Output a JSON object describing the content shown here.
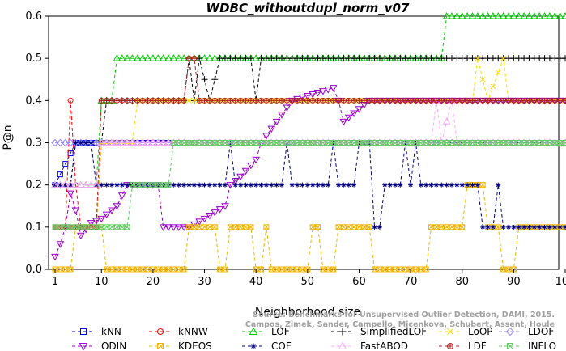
{
  "chart_data": {
    "type": "line",
    "title": "WDBC_withoutdupl_norm_v07",
    "xlabel": "Neighborhood size",
    "ylabel": "P@n",
    "xlim": [
      1,
      100
    ],
    "ylim": [
      0,
      0.6
    ],
    "xticks": [
      1,
      10,
      20,
      30,
      40,
      50,
      60,
      70,
      80,
      90,
      100
    ],
    "yticks": [
      0.0,
      0.1,
      0.2,
      0.3,
      0.4,
      0.5,
      0.6
    ],
    "grid": false,
    "legend_position": "bottom",
    "watermark": [
      "Source: Benchmarks for Unsupervised Outlier Detection, DAMI, 2015.",
      "Campos, Zimek, Sander, Campello, Micenkova, Schubert, Assent, Houle"
    ],
    "series": [
      {
        "name": "kNN",
        "color": "#0000ff",
        "marker": "square",
        "segments": [
          [
            1,
            0.2
          ],
          [
            5,
            0.3
          ],
          [
            100,
            0.3
          ]
        ]
      },
      {
        "name": "kNNW",
        "color": "#ff0000",
        "marker": "circle",
        "segments": [
          [
            1,
            0.1
          ],
          [
            3,
            0.1
          ],
          [
            4,
            0.4
          ],
          [
            5,
            0.2
          ],
          [
            6,
            0.1
          ],
          [
            9,
            0.1
          ],
          [
            10,
            0.3
          ],
          [
            100,
            0.3
          ]
        ]
      },
      {
        "name": "LOF",
        "color": "#00cc00",
        "marker": "triangle-up",
        "segments": [
          [
            1,
            0.2
          ],
          [
            9,
            0.2
          ],
          [
            10,
            0.4
          ],
          [
            12,
            0.4
          ],
          [
            13,
            0.5
          ],
          [
            76,
            0.5
          ],
          [
            77,
            0.6
          ],
          [
            100,
            0.6
          ]
        ]
      },
      {
        "name": "SimplifiedLOF",
        "color": "#000000",
        "marker": "plus",
        "segments": [
          [
            1,
            0.2
          ],
          [
            4,
            0.2
          ],
          [
            5,
            0.3
          ],
          [
            10,
            0.3
          ],
          [
            11,
            0.4
          ],
          [
            26,
            0.4
          ],
          [
            27,
            0.5
          ],
          [
            28,
            0.4
          ],
          [
            29,
            0.5
          ],
          [
            31,
            0.4
          ],
          [
            33,
            0.5
          ],
          [
            39,
            0.5
          ],
          [
            40,
            0.4
          ],
          [
            41,
            0.5
          ],
          [
            100,
            0.5
          ]
        ]
      },
      {
        "name": "LoOP",
        "color": "#ffdd00",
        "marker": "x",
        "segments": [
          [
            1,
            0.1
          ],
          [
            9,
            0.1
          ],
          [
            10,
            0.3
          ],
          [
            16,
            0.3
          ],
          [
            17,
            0.4
          ],
          [
            82,
            0.4
          ],
          [
            83,
            0.5
          ],
          [
            85,
            0.4
          ],
          [
            88,
            0.5
          ],
          [
            89,
            0.4
          ],
          [
            100,
            0.4
          ]
        ]
      },
      {
        "name": "LDOF",
        "color": "#9988ff",
        "marker": "diamond",
        "segments": [
          [
            1,
            0.3
          ],
          [
            100,
            0.3
          ]
        ]
      },
      {
        "name": "ODIN",
        "color": "#9900cc",
        "marker": "triangle-down",
        "segments": [
          [
            1,
            0.03
          ],
          [
            2,
            0.06
          ],
          [
            3,
            0.1
          ],
          [
            4,
            0.18
          ],
          [
            5,
            0.14
          ],
          [
            6,
            0.08
          ],
          [
            8,
            0.11
          ],
          [
            10,
            0.12
          ],
          [
            13,
            0.15
          ],
          [
            15,
            0.2
          ],
          [
            21,
            0.2
          ],
          [
            22,
            0.1
          ],
          [
            27,
            0.1
          ],
          [
            30,
            0.12
          ],
          [
            34,
            0.15
          ],
          [
            35,
            0.2
          ],
          [
            37,
            0.22
          ],
          [
            40,
            0.26
          ],
          [
            41,
            0.3
          ],
          [
            47,
            0.4
          ],
          [
            55,
            0.43
          ],
          [
            56,
            0.4
          ],
          [
            57,
            0.35
          ],
          [
            58,
            0.36
          ],
          [
            62,
            0.4
          ],
          [
            100,
            0.4
          ]
        ]
      },
      {
        "name": "KDEOS",
        "color": "#f0b400",
        "marker": "square-x",
        "segments": [
          [
            1,
            0.0
          ],
          [
            4,
            0.0
          ],
          [
            5,
            0.1
          ],
          [
            10,
            0.1
          ],
          [
            11,
            0.0
          ],
          [
            26,
            0.0
          ],
          [
            27,
            0.1
          ],
          [
            32,
            0.1
          ],
          [
            33,
            0.0
          ],
          [
            34,
            0.0
          ],
          [
            35,
            0.1
          ],
          [
            39,
            0.1
          ],
          [
            40,
            0.0
          ],
          [
            41,
            0.0
          ],
          [
            42,
            0.1
          ],
          [
            43,
            0.0
          ],
          [
            50,
            0.0
          ],
          [
            51,
            0.1
          ],
          [
            52,
            0.1
          ],
          [
            53,
            0.0
          ],
          [
            55,
            0.0
          ],
          [
            56,
            0.1
          ],
          [
            62,
            0.1
          ],
          [
            63,
            0.0
          ],
          [
            73,
            0.0
          ],
          [
            74,
            0.1
          ],
          [
            80,
            0.1
          ],
          [
            81,
            0.2
          ],
          [
            84,
            0.2
          ],
          [
            85,
            0.1
          ],
          [
            87,
            0.1
          ],
          [
            88,
            0.0
          ],
          [
            90,
            0.0
          ],
          [
            91,
            0.1
          ],
          [
            100,
            0.1
          ]
        ]
      },
      {
        "name": "COF",
        "color": "#000080",
        "marker": "asterisk",
        "segments": [
          [
            1,
            0.2
          ],
          [
            4,
            0.2
          ],
          [
            5,
            0.3
          ],
          [
            8,
            0.3
          ],
          [
            9,
            0.2
          ],
          [
            34,
            0.2
          ],
          [
            35,
            0.3
          ],
          [
            36,
            0.2
          ],
          [
            45,
            0.2
          ],
          [
            46,
            0.3
          ],
          [
            47,
            0.2
          ],
          [
            54,
            0.2
          ],
          [
            55,
            0.3
          ],
          [
            56,
            0.2
          ],
          [
            59,
            0.2
          ],
          [
            60,
            0.3
          ],
          [
            62,
            0.3
          ],
          [
            63,
            0.1
          ],
          [
            64,
            0.1
          ],
          [
            65,
            0.2
          ],
          [
            68,
            0.2
          ],
          [
            69,
            0.3
          ],
          [
            70,
            0.2
          ],
          [
            71,
            0.3
          ],
          [
            72,
            0.2
          ],
          [
            83,
            0.2
          ],
          [
            84,
            0.1
          ],
          [
            86,
            0.1
          ],
          [
            87,
            0.2
          ],
          [
            88,
            0.1
          ],
          [
            100,
            0.1
          ]
        ]
      },
      {
        "name": "FastABOD",
        "color": "#ffaaff",
        "marker": "triangle-up",
        "segments": [
          [
            1,
            0.2
          ],
          [
            9,
            0.2
          ],
          [
            10,
            0.3
          ],
          [
            74,
            0.3
          ],
          [
            75,
            0.4
          ],
          [
            76,
            0.3
          ],
          [
            78,
            0.4
          ],
          [
            79,
            0.3
          ],
          [
            100,
            0.3
          ]
        ]
      },
      {
        "name": "LDF",
        "color": "#b02020",
        "marker": "circle-plus",
        "segments": [
          [
            1,
            0.1
          ],
          [
            9,
            0.1
          ],
          [
            10,
            0.4
          ],
          [
            26,
            0.4
          ],
          [
            27,
            0.5
          ],
          [
            28,
            0.5
          ],
          [
            29,
            0.4
          ],
          [
            100,
            0.4
          ]
        ]
      },
      {
        "name": "INFLO",
        "color": "#66cc66",
        "marker": "square-x",
        "segments": [
          [
            1,
            0.1
          ],
          [
            4,
            0.1
          ],
          [
            5,
            0.1
          ],
          [
            15,
            0.1
          ],
          [
            16,
            0.2
          ],
          [
            22,
            0.2
          ],
          [
            23,
            0.2
          ],
          [
            24,
            0.3
          ],
          [
            100,
            0.3
          ]
        ]
      }
    ]
  }
}
